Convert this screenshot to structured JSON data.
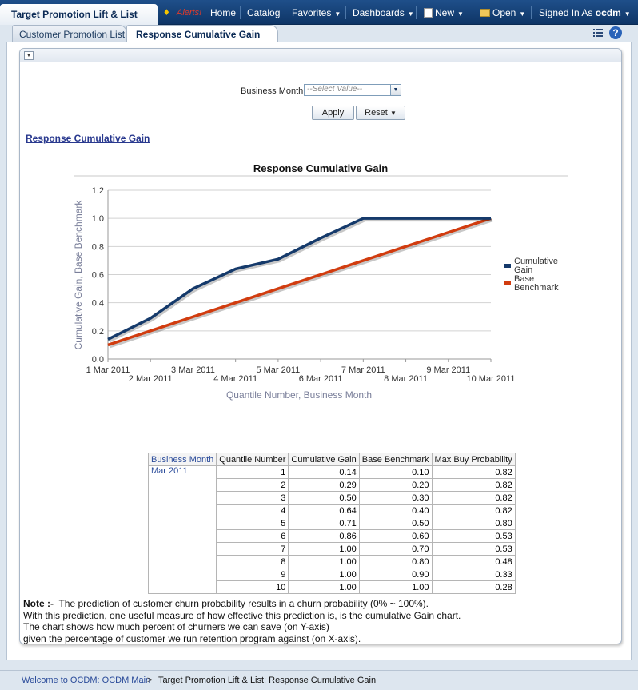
{
  "header": {
    "app_title": "Target Promotion Lift & List",
    "alerts_label": "Alerts!",
    "nav": [
      {
        "label": "Home",
        "has_menu": false
      },
      {
        "label": "Catalog",
        "has_menu": false
      },
      {
        "label": "Favorites",
        "has_menu": true
      },
      {
        "label": "Dashboards",
        "has_menu": true
      },
      {
        "label": "New",
        "has_menu": true
      },
      {
        "label": "Open",
        "has_menu": true
      }
    ],
    "signed_in_label": "Signed In As",
    "user": "ocdm",
    "icons": [
      "bell-icon",
      "new-icon",
      "folder-icon",
      "chevron-down-icon"
    ]
  },
  "tabs": [
    {
      "label": "Customer Promotion List",
      "active": false
    },
    {
      "label": "Response Cumulative Gain",
      "active": true
    }
  ],
  "toolbar_icons": [
    "list-options-icon",
    "help-icon"
  ],
  "help_glyph": "?",
  "prompt": {
    "label": "Business Month",
    "placeholder": "--Select Value--",
    "apply_label": "Apply",
    "reset_label": "Reset"
  },
  "report_link": "Response Cumulative Gain",
  "chart_data": {
    "type": "line",
    "title": "Response Cumulative Gain",
    "xlabel": "Quantile Number, Business Month",
    "ylabel": "Cumulative Gain, Base Benchmark",
    "categories": [
      "1 Mar 2011",
      "2 Mar 2011",
      "3 Mar 2011",
      "4 Mar 2011",
      "5 Mar 2011",
      "6 Mar 2011",
      "7 Mar 2011",
      "8 Mar 2011",
      "9 Mar 2011",
      "10 Mar 2011"
    ],
    "yticks": [
      "0.0",
      "0.2",
      "0.4",
      "0.6",
      "0.8",
      "1.0",
      "1.2"
    ],
    "ylim": [
      0,
      1.2
    ],
    "grid": "horizontal",
    "legend_position": "right",
    "series": [
      {
        "name": "Cumulative Gain",
        "legend_lines": [
          "Cumulative",
          "Gain"
        ],
        "color": "#153a6b",
        "values": [
          0.14,
          0.29,
          0.5,
          0.64,
          0.71,
          0.86,
          1.0,
          1.0,
          1.0,
          1.0
        ]
      },
      {
        "name": "Base Benchmark",
        "legend_lines": [
          "Base",
          "Benchmark"
        ],
        "color": "#d13c0f",
        "values": [
          0.1,
          0.2,
          0.3,
          0.4,
          0.5,
          0.6,
          0.7,
          0.8,
          0.9,
          1.0
        ]
      }
    ]
  },
  "table": {
    "columns": [
      "Business Month",
      "Quantile Number",
      "Cumulative Gain",
      "Base Benchmark",
      "Max Buy Probability"
    ],
    "business_month": "Mar 2011",
    "rows": [
      [
        "1",
        "0.14",
        "0.10",
        "0.82"
      ],
      [
        "2",
        "0.29",
        "0.20",
        "0.82"
      ],
      [
        "3",
        "0.50",
        "0.30",
        "0.82"
      ],
      [
        "4",
        "0.64",
        "0.40",
        "0.82"
      ],
      [
        "5",
        "0.71",
        "0.50",
        "0.80"
      ],
      [
        "6",
        "0.86",
        "0.60",
        "0.53"
      ],
      [
        "7",
        "1.00",
        "0.70",
        "0.53"
      ],
      [
        "8",
        "1.00",
        "0.80",
        "0.48"
      ],
      [
        "9",
        "1.00",
        "0.90",
        "0.33"
      ],
      [
        "10",
        "1.00",
        "1.00",
        "0.28"
      ]
    ]
  },
  "note": {
    "label": "Note :-",
    "lines": [
      "The prediction of customer churn probability results in a churn probability (0% ~ 100%).",
      "With this prediction, one useful measure of how effective this prediction is, is the cumulative Gain chart.",
      "The chart shows how much percent of churners we can save (on Y-axis)",
      "given the percentage of customer we run retention program against (on X-axis)."
    ]
  },
  "footer": {
    "home_crumb": "Welcome to OCDM: OCDM Main",
    "separator": ">",
    "current_crumb": "Target Promotion Lift & List: Response Cumulative Gain"
  }
}
